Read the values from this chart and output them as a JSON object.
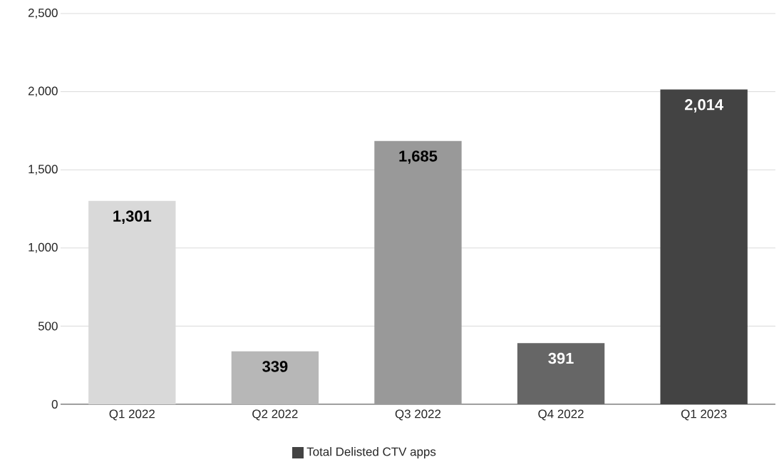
{
  "chart_data": {
    "type": "bar",
    "categories": [
      "Q1 2022",
      "Q2 2022",
      "Q3 2022",
      "Q4 2022",
      "Q1 2023"
    ],
    "series": [
      {
        "name": "Total Delisted CTV apps",
        "color": "#434343",
        "colors": [
          "#d9d9d9",
          "#b7b7b7",
          "#999999",
          "#666666",
          "#434343"
        ],
        "values": [
          1301,
          339,
          1685,
          391,
          2014
        ],
        "value_labels": [
          "1,301",
          "339",
          "1,685",
          "391",
          "2,014"
        ]
      }
    ],
    "ylim": [
      0,
      2500
    ],
    "yticks": [
      {
        "value": 0,
        "label": "0"
      },
      {
        "value": 500,
        "label": "500"
      },
      {
        "value": 1000,
        "label": "1,000"
      },
      {
        "value": 1500,
        "label": "1,500"
      },
      {
        "value": 2000,
        "label": "2,000"
      },
      {
        "value": 2500,
        "label": "2,500"
      }
    ],
    "grid": "y",
    "legend": "bottom"
  }
}
